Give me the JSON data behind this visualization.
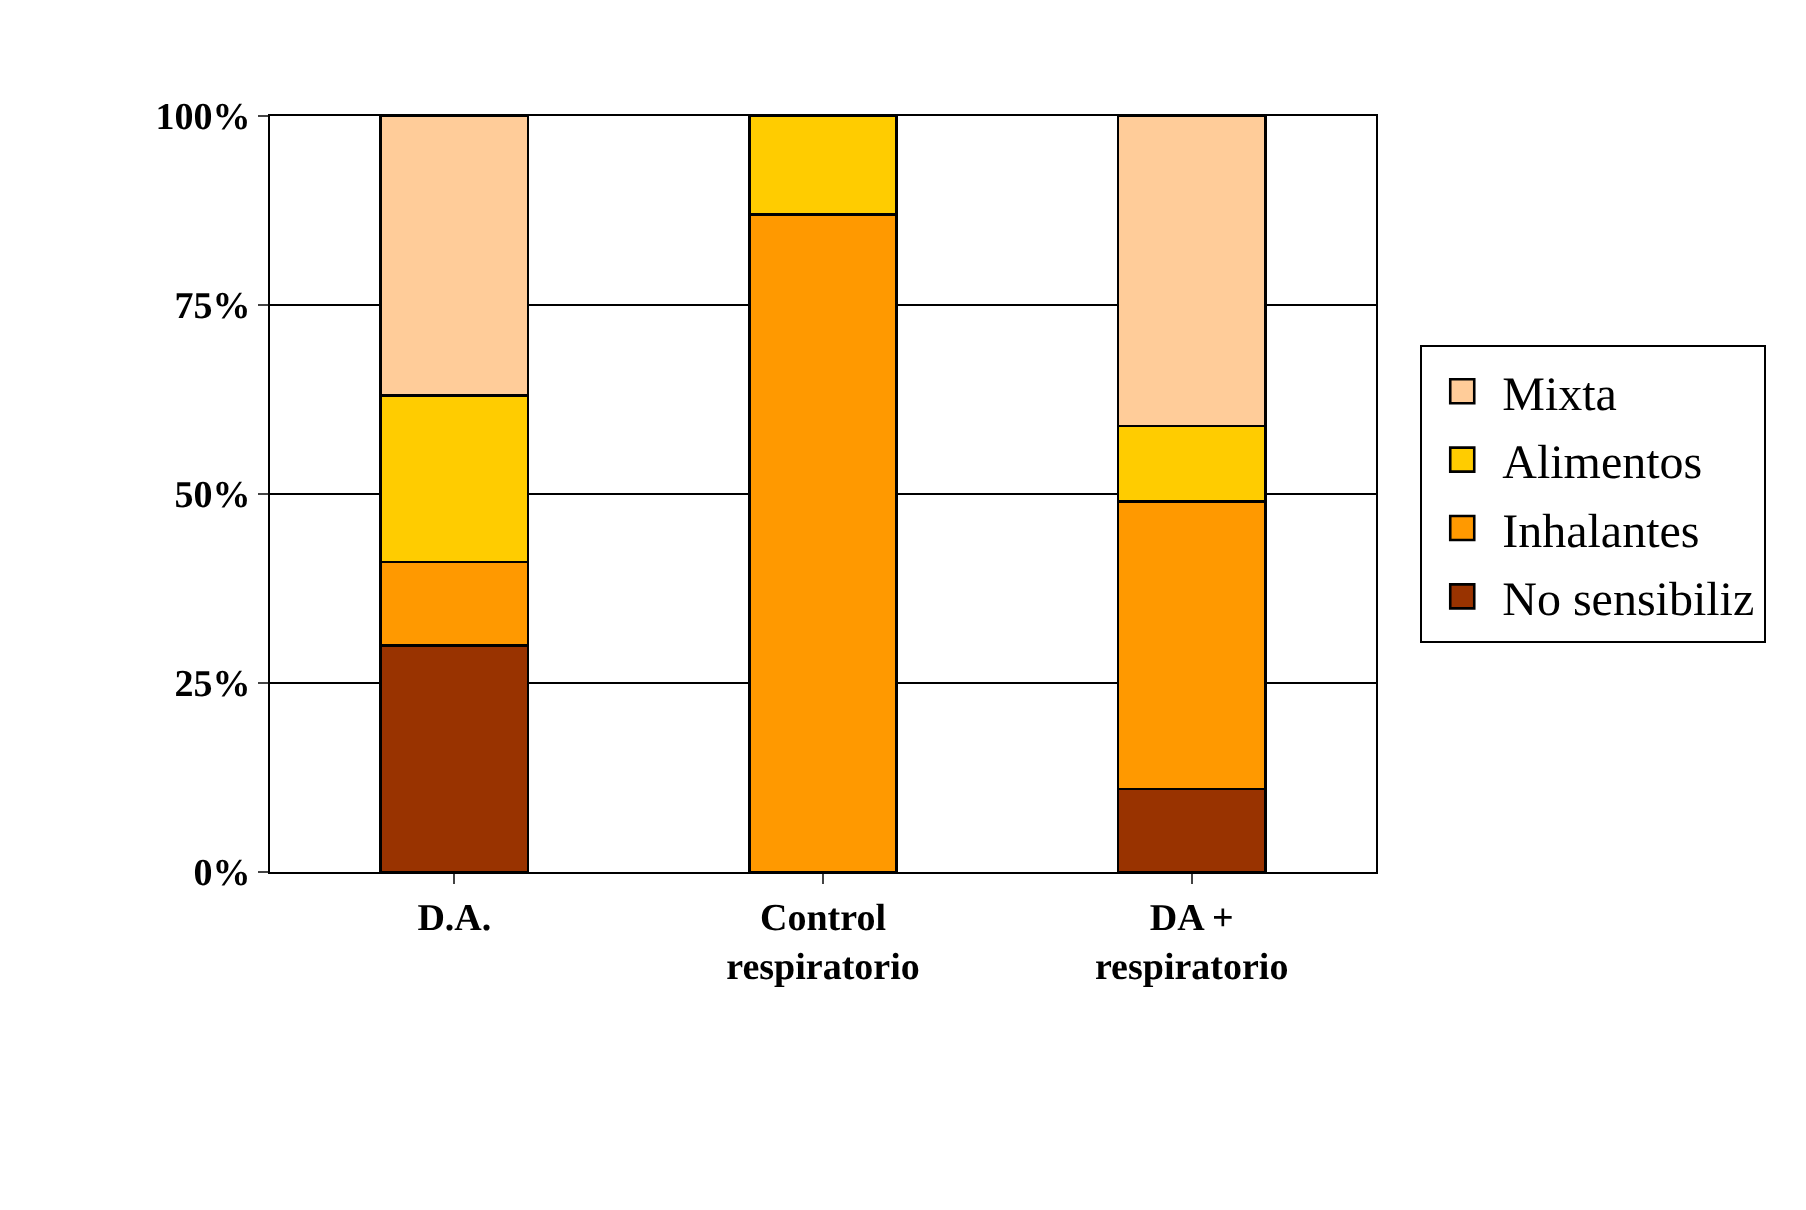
{
  "chart_data": {
    "type": "bar",
    "stacked": true,
    "categories": [
      "D.A.",
      "Control respiratorio",
      "DA + respiratorio"
    ],
    "series": [
      {
        "name": "No sensibiliz",
        "color": "#993300",
        "values": [
          30,
          null,
          11
        ]
      },
      {
        "name": "Inhalantes",
        "color": "#ff9900",
        "values": [
          11,
          87,
          38
        ]
      },
      {
        "name": "Alimentos",
        "color": "#ffcc00",
        "values": [
          22,
          13,
          10
        ]
      },
      {
        "name": "Mixta",
        "color": "#ffcc99",
        "values": [
          37,
          null,
          41
        ]
      }
    ],
    "ylim": [
      0,
      100
    ],
    "yticks": [
      {
        "value": 0,
        "label": "0%"
      },
      {
        "value": 25,
        "label": "25%"
      },
      {
        "value": 50,
        "label": "50%"
      },
      {
        "value": 75,
        "label": "75%"
      },
      {
        "value": 100,
        "label": "100%"
      }
    ],
    "grid": "y",
    "legend": "right"
  }
}
